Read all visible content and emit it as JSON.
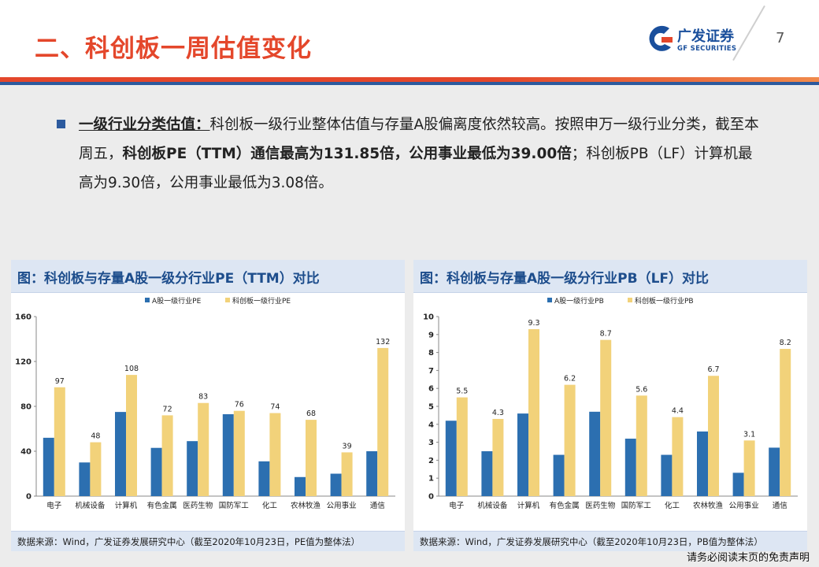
{
  "header": {
    "title": "二、科创板一周估值变化",
    "logo_cn": "广发证券",
    "logo_en": "GF SECURITIES",
    "page_number": "7"
  },
  "bullet": {
    "lead": "一级行业分类估值：",
    "text1": "科创板一级行业整体估值与存量A股偏离度依然较高。按照申万一级行业分类，截至本周五，",
    "bold1": "科创板PE（TTM）通信最高为131.85倍，公用事业最低为39.00倍",
    "text2": "；科创板PB（LF）计算机最高为9.30倍，公用事业最低为3.08倍。"
  },
  "left_panel": {
    "title": "图：科创板与存量A股一级分行业PE（TTM）对比",
    "source": "数据来源：Wind，广发证券发展研究中心（截至2020年10月23日，PE值为整体法）"
  },
  "right_panel": {
    "title": "图：科创板与存量A股一级分行业PB（LF）对比",
    "source": "数据来源：Wind，广发证券发展研究中心（截至2020年10月23日，PB值为整体法）"
  },
  "disclaimer": "请务必阅读末页的免责声明",
  "colors": {
    "a_share": "#2c6fb0",
    "star": "#f2d27a"
  },
  "chart_data": [
    {
      "type": "bar",
      "categories": [
        "电子",
        "机械设备",
        "计算机",
        "有色金属",
        "医药生物",
        "国防军工",
        "化工",
        "农林牧渔",
        "公用事业",
        "通信"
      ],
      "series": [
        {
          "name": "A股一级行业PE",
          "values": [
            52,
            30,
            75,
            43,
            49,
            73,
            31,
            17,
            20,
            40
          ]
        },
        {
          "name": "科创板一级行业PE",
          "values": [
            97,
            48,
            108,
            72,
            83,
            76,
            74,
            68,
            39,
            132
          ]
        }
      ],
      "data_labels_series": 1,
      "label_decimals": 0,
      "yticks": [
        "0",
        "40",
        "80",
        "120",
        "160"
      ],
      "ylim": [
        0,
        160
      ],
      "ystep": 40,
      "legend": "top",
      "grid": false
    },
    {
      "type": "bar",
      "categories": [
        "电子",
        "机械设备",
        "计算机",
        "有色金属",
        "医药生物",
        "国防军工",
        "化工",
        "农林牧渔",
        "公用事业",
        "通信"
      ],
      "series": [
        {
          "name": "A股一级行业PB",
          "values": [
            4.2,
            2.5,
            4.6,
            2.3,
            4.7,
            3.2,
            2.3,
            3.6,
            1.3,
            2.7
          ]
        },
        {
          "name": "科创板一级行业PB",
          "values": [
            5.5,
            4.3,
            9.3,
            6.2,
            8.7,
            5.6,
            4.4,
            6.7,
            3.1,
            8.2
          ]
        }
      ],
      "data_labels_series": 1,
      "label_decimals": 1,
      "yticks": [
        "0",
        "1",
        "2",
        "3",
        "4",
        "5",
        "6",
        "7",
        "8",
        "9",
        "10"
      ],
      "ylim": [
        0,
        10
      ],
      "ystep": 1,
      "legend": "top",
      "grid": false
    }
  ]
}
